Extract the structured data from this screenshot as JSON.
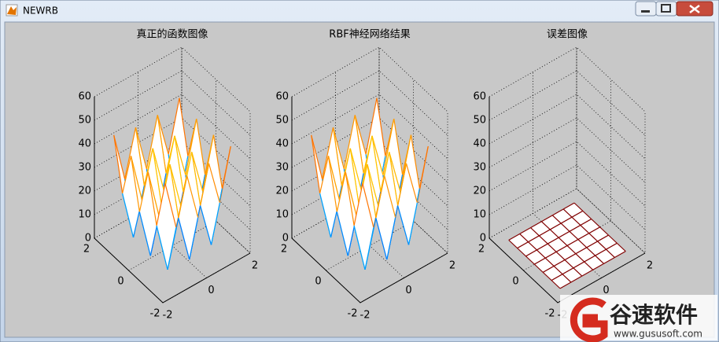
{
  "window": {
    "title": "NEWRB"
  },
  "chart_data": [
    {
      "type": "mesh",
      "title": "真正的函数图像",
      "x": [
        -1.5,
        -1,
        -0.5,
        0,
        0.5,
        1,
        1.5
      ],
      "y": [
        -1.5,
        -1,
        -0.5,
        0,
        0.5,
        1,
        1.5
      ],
      "z": [
        [
          44.5,
          23.25,
          42.5,
          22.25,
          42.5,
          23.25,
          44.5
        ],
        [
          23.25,
          2,
          21.25,
          1,
          21.25,
          2,
          23.25
        ],
        [
          42.5,
          21.25,
          40.5,
          20.25,
          40.5,
          21.25,
          42.5
        ],
        [
          22.25,
          1,
          20.25,
          0,
          20.25,
          1,
          22.25
        ],
        [
          42.5,
          21.25,
          40.5,
          20.25,
          40.5,
          21.25,
          42.5
        ],
        [
          23.25,
          2,
          21.25,
          1,
          21.25,
          2,
          23.25
        ],
        [
          44.5,
          23.25,
          42.5,
          22.25,
          42.5,
          23.25,
          44.5
        ]
      ],
      "xlim": [
        -2,
        2
      ],
      "ylim": [
        -2,
        2
      ],
      "zlim": [
        0,
        60
      ],
      "xticks": [
        -2,
        0,
        2
      ],
      "yticks": [
        -2,
        0,
        2
      ],
      "zticks": [
        0,
        10,
        20,
        30,
        40,
        50,
        60
      ],
      "grid": true,
      "colormap": "jet"
    },
    {
      "type": "mesh",
      "title": "RBF神经网络结果",
      "x": [
        -1.5,
        -1,
        -0.5,
        0,
        0.5,
        1,
        1.5
      ],
      "y": [
        -1.5,
        -1,
        -0.5,
        0,
        0.5,
        1,
        1.5
      ],
      "z": [
        [
          44.5,
          23.25,
          42.5,
          22.25,
          42.5,
          23.25,
          44.5
        ],
        [
          23.25,
          2,
          21.25,
          1,
          21.25,
          2,
          23.25
        ],
        [
          42.5,
          21.25,
          40.5,
          20.25,
          40.5,
          21.25,
          42.5
        ],
        [
          22.25,
          1,
          20.25,
          0,
          20.25,
          1,
          22.25
        ],
        [
          42.5,
          21.25,
          40.5,
          20.25,
          40.5,
          21.25,
          42.5
        ],
        [
          23.25,
          2,
          21.25,
          1,
          21.25,
          2,
          23.25
        ],
        [
          44.5,
          23.25,
          42.5,
          22.25,
          42.5,
          23.25,
          44.5
        ]
      ],
      "xlim": [
        -2,
        2
      ],
      "ylim": [
        -2,
        2
      ],
      "zlim": [
        0,
        60
      ],
      "xticks": [
        -2,
        0,
        2
      ],
      "yticks": [
        -2,
        0,
        2
      ],
      "zticks": [
        0,
        10,
        20,
        30,
        40,
        50,
        60
      ],
      "grid": true,
      "colormap": "jet"
    },
    {
      "type": "mesh",
      "title": "误差图像",
      "x": [
        -1.5,
        -1,
        -0.5,
        0,
        0.5,
        1,
        1.5
      ],
      "y": [
        -1.5,
        -1,
        -0.5,
        0,
        0.5,
        1,
        1.5
      ],
      "z": [
        [
          0,
          0,
          0,
          0,
          0,
          0,
          0
        ],
        [
          0,
          0,
          0,
          0,
          0,
          0,
          0
        ],
        [
          0,
          0,
          0,
          0,
          0,
          0,
          0
        ],
        [
          0,
          0,
          0,
          0,
          0,
          0,
          0
        ],
        [
          0,
          0,
          0,
          0,
          0,
          0,
          0
        ],
        [
          0,
          0,
          0,
          0,
          0,
          0,
          0
        ],
        [
          0,
          0,
          0,
          0,
          0,
          0,
          0
        ]
      ],
      "xlim": [
        -2,
        2
      ],
      "ylim": [
        -2,
        2
      ],
      "zlim": [
        0,
        60
      ],
      "xticks": [
        -2,
        0,
        2
      ],
      "yticks": [
        -2,
        0,
        2
      ],
      "zticks": [
        0,
        10,
        20,
        30,
        40,
        50,
        60
      ],
      "grid": true,
      "colormap": "jet"
    }
  ],
  "watermark": {
    "name": "谷速软件",
    "url": "www.gususoft.com"
  }
}
